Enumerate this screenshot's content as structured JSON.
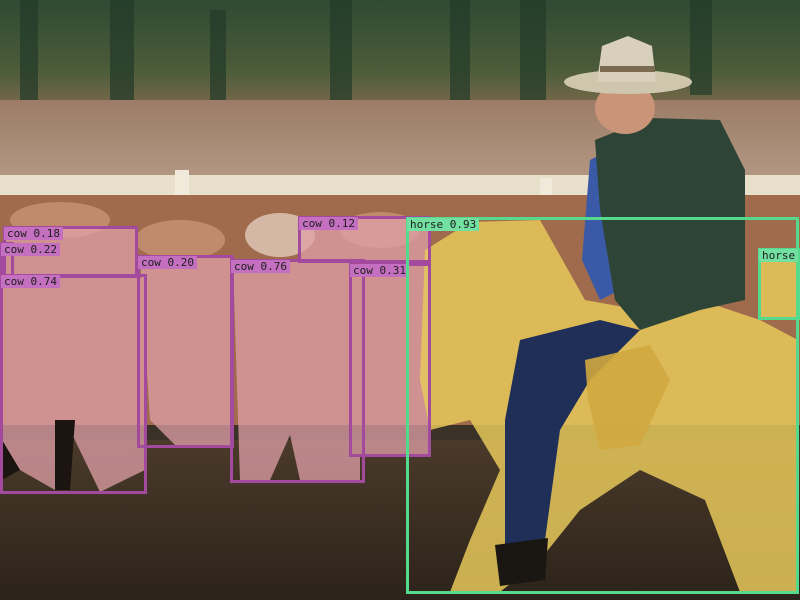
{
  "image": {
    "description_colors": {
      "cow_box": "#a44a9e",
      "horse_box": "#55d98c",
      "cow_mask": "#e0a0a8",
      "horse_mask": "#e6c85a"
    }
  },
  "detections": [
    {
      "id": "cow-1",
      "label": "cow 0.18",
      "cls": "cow"
    },
    {
      "id": "cow-2",
      "label": "cow 0.22",
      "cls": "cow"
    },
    {
      "id": "cow-3",
      "label": "cow 0.74",
      "cls": "cow"
    },
    {
      "id": "cow-4",
      "label": "cow 0.20",
      "cls": "cow"
    },
    {
      "id": "cow-5",
      "label": "cow 0.76",
      "cls": "cow"
    },
    {
      "id": "cow-6",
      "label": "cow 0.12",
      "cls": "cow"
    },
    {
      "id": "cow-7",
      "label": "cow 0.31",
      "cls": "cow"
    },
    {
      "id": "horse-1",
      "label": "horse 0.93",
      "cls": "horse"
    },
    {
      "id": "horse-2",
      "label": "horse",
      "cls": "horse"
    }
  ]
}
